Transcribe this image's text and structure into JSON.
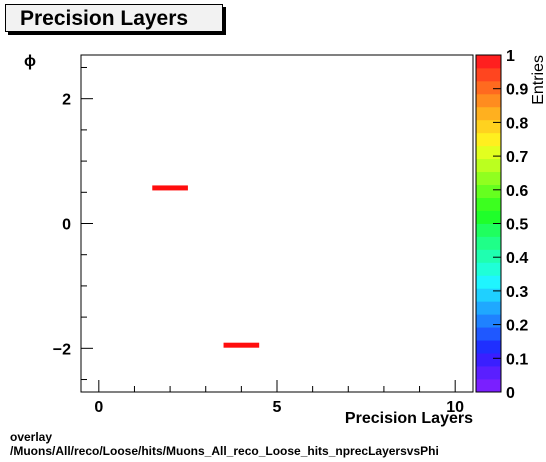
{
  "title": "Precision Layers",
  "footer": {
    "line1": "overlay",
    "line2": "/Muons/All/reco/Loose/hits/Muons_All_reco_Loose_hits_nprecLayersvsPhi"
  },
  "chart_data": {
    "type": "heatmap",
    "xlabel": "Precision Layers",
    "ylabel": "ϕ",
    "zlabel": "Entries",
    "xlim": [
      -0.5,
      10.5
    ],
    "ylim": [
      -2.7,
      2.7
    ],
    "zlim": [
      0,
      1
    ],
    "x_ticks": [
      0,
      5,
      10
    ],
    "y_ticks": [
      -2,
      0,
      2
    ],
    "y_tick_labels": [
      "−2",
      "0",
      "2"
    ],
    "z_ticks": [
      0,
      0.1,
      0.2,
      0.3,
      0.4,
      0.5,
      0.6,
      0.7,
      0.8,
      0.9,
      1
    ],
    "bins": [
      {
        "x": [
          1.5,
          2.5
        ],
        "y": [
          0.53,
          0.61
        ],
        "value": 1
      },
      {
        "x": [
          3.5,
          4.5
        ],
        "y": [
          -1.99,
          -1.91
        ],
        "value": 1
      }
    ],
    "bin_color": "#ff0d0d",
    "palette": [
      "#7a1fff",
      "#5a1fff",
      "#3a1fff",
      "#1f2fff",
      "#1f58ff",
      "#1f82ff",
      "#1fa8ff",
      "#1fd0ff",
      "#1ff5ff",
      "#1fffd8",
      "#1fffb0",
      "#1fff88",
      "#1fff5e",
      "#1fff2a",
      "#3cff1f",
      "#66ff1f",
      "#90ff1f",
      "#bbff1f",
      "#e2ff1f",
      "#ffef1f",
      "#ffd21f",
      "#ffb01f",
      "#ff8c1f",
      "#ff6a1f",
      "#ff451f",
      "#ff1f1f"
    ]
  }
}
